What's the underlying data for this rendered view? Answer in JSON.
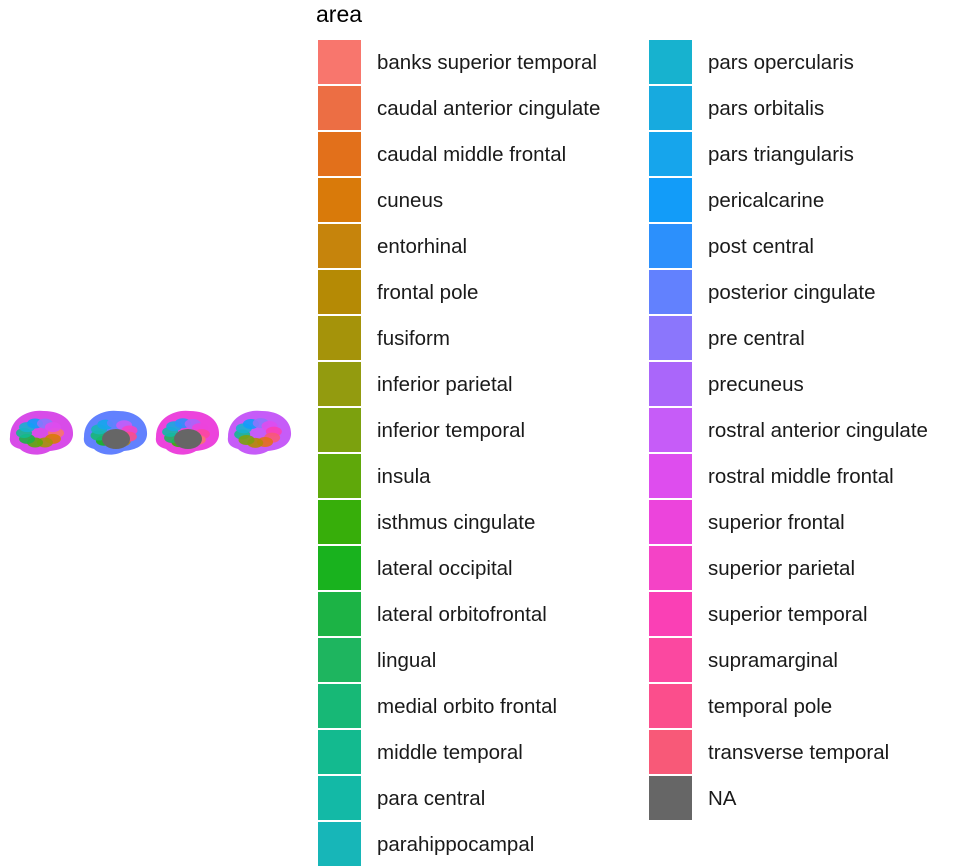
{
  "legend": {
    "title": "area",
    "columns": [
      [
        {
          "label": "banks superior temporal",
          "color": "#F8766D"
        },
        {
          "label": "caudal anterior cingulate",
          "color": "#EC6E44"
        },
        {
          "label": "caudal middle frontal",
          "color": "#E2701B"
        },
        {
          "label": "cuneus",
          "color": "#D97A0A"
        },
        {
          "label": "entorhinal",
          "color": "#C6840C"
        },
        {
          "label": "frontal pole",
          "color": "#B58A05"
        },
        {
          "label": "fusiform",
          "color": "#A5930A"
        },
        {
          "label": "inferior parietal",
          "color": "#939B0F"
        },
        {
          "label": "inferior temporal",
          "color": "#7CA10E"
        },
        {
          "label": "insula",
          "color": "#5FA80A"
        },
        {
          "label": "isthmus cingulate",
          "color": "#37AE0A"
        },
        {
          "label": "lateral occipital",
          "color": "#19B21E"
        },
        {
          "label": "lateral orbitofrontal",
          "color": "#1CB345"
        },
        {
          "label": "lingual",
          "color": "#1EB55F"
        },
        {
          "label": "medial orbito frontal",
          "color": "#17B876"
        },
        {
          "label": "middle temporal",
          "color": "#13BA8F"
        },
        {
          "label": "para central",
          "color": "#13B9A6"
        },
        {
          "label": "parahippocampal",
          "color": "#17B6B8"
        }
      ],
      [
        {
          "label": "pars opercularis",
          "color": "#17B2CF"
        },
        {
          "label": "pars orbitalis",
          "color": "#17AADF"
        },
        {
          "label": "pars triangularis",
          "color": "#16A5EC"
        },
        {
          "label": "pericalcarine",
          "color": "#129CF9"
        },
        {
          "label": "post central",
          "color": "#2C90FC"
        },
        {
          "label": "posterior cingulate",
          "color": "#6281FE"
        },
        {
          "label": "pre central",
          "color": "#8B76FC"
        },
        {
          "label": "precuneus",
          "color": "#AA66FA"
        },
        {
          "label": "rostral anterior cingulate",
          "color": "#C65CF8"
        },
        {
          "label": "rostral middle frontal",
          "color": "#DE4DEE"
        },
        {
          "label": "superior frontal",
          "color": "#EC44DC"
        },
        {
          "label": "superior parietal",
          "color": "#F443C6"
        },
        {
          "label": "superior temporal",
          "color": "#FA40B5"
        },
        {
          "label": "supramarginal",
          "color": "#FB48A0"
        },
        {
          "label": "temporal pole",
          "color": "#FB4E8C"
        },
        {
          "label": "transverse temporal",
          "color": "#F85978"
        },
        {
          "label": "NA",
          "color": "#666666"
        }
      ]
    ]
  },
  "brain_views": [
    {
      "view": "left-lateral",
      "color": "#D84CE8"
    },
    {
      "view": "left-medial",
      "color": "#6281FE"
    },
    {
      "view": "right-medial",
      "color": "#EC44DC"
    },
    {
      "view": "right-lateral",
      "color": "#C65CF8"
    }
  ],
  "medial_wall_color": "#666666"
}
